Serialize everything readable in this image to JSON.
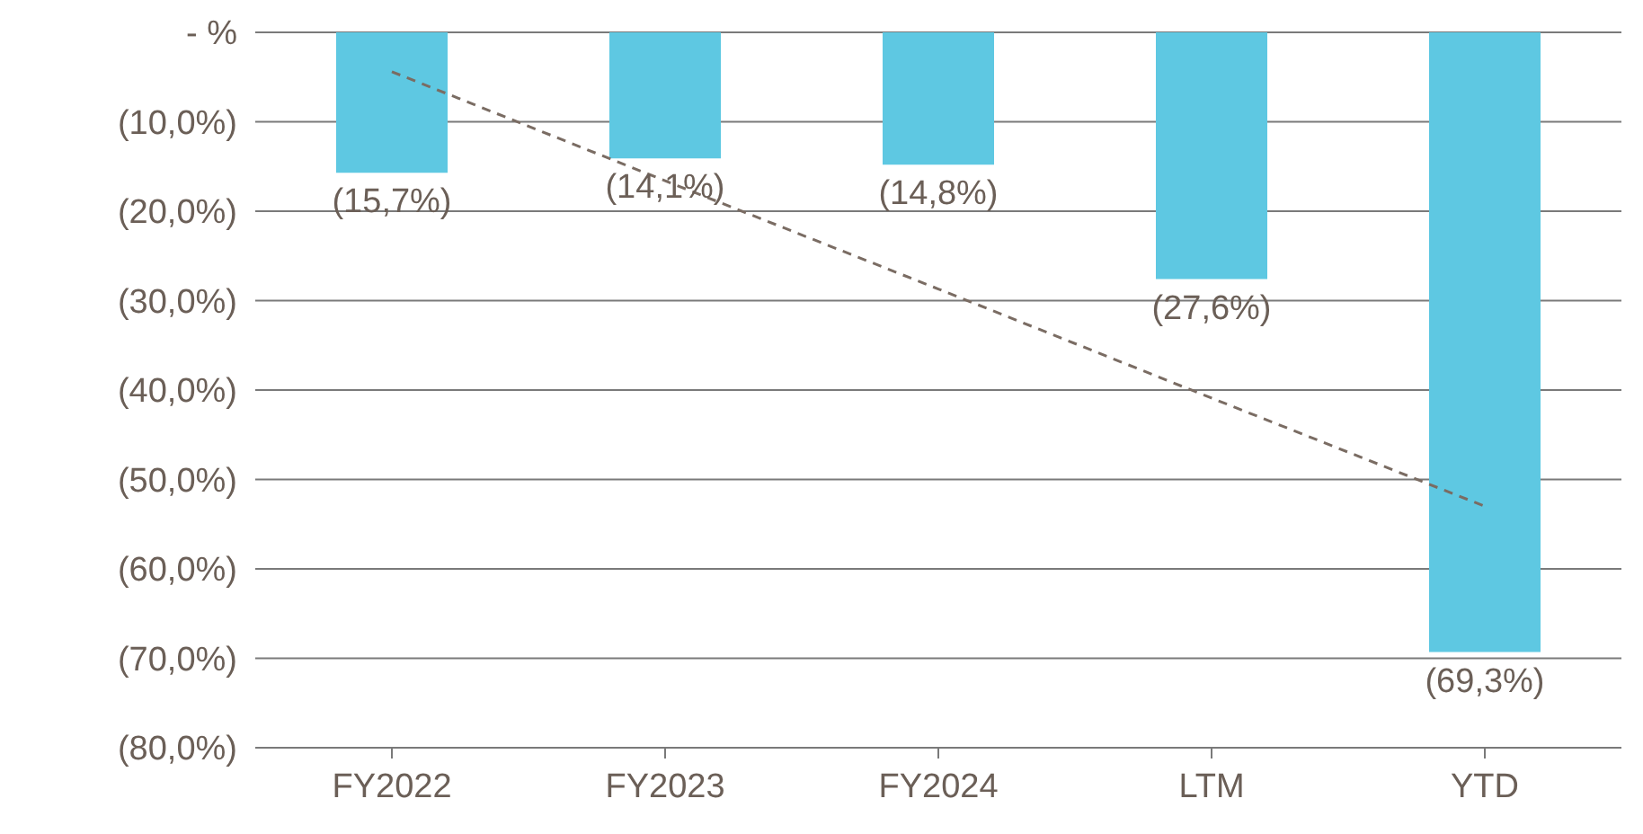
{
  "chart_data": {
    "type": "bar",
    "categories": [
      "FY2022",
      "FY2023",
      "FY2024",
      "LTM",
      "YTD"
    ],
    "series": [
      {
        "color": "#5ec8e2",
        "values": [
          -15.7,
          -14.1,
          -14.8,
          -27.6,
          -69.3
        ],
        "value_labels": [
          "(15,7%)",
          "(14,1%)",
          "(14,8%)",
          "(27,6%)",
          "(69,3%)"
        ]
      },
      {
        "type": "line",
        "color": "#7a6c63",
        "line_style": "dashed",
        "marker": "none",
        "x": [
          "FY2022",
          "FY2023",
          "FY2024",
          "LTM",
          "YTD"
        ],
        "values": [
          -4.4,
          -16.6,
          -28.7,
          -40.9,
          -53.0
        ]
      }
    ],
    "ylim": [
      -80,
      0
    ],
    "yticks": [
      {
        "value": 0,
        "label": "- %"
      },
      {
        "value": -10,
        "label": "(10,0%)"
      },
      {
        "value": -20,
        "label": "(20,0%)"
      },
      {
        "value": -30,
        "label": "(30,0%)"
      },
      {
        "value": -40,
        "label": "(40,0%)"
      },
      {
        "value": -50,
        "label": "(50,0%)"
      },
      {
        "value": -60,
        "label": "(60,0%)"
      },
      {
        "value": -70,
        "label": "(70,0%)"
      },
      {
        "value": -80,
        "label": "(80,0%)"
      }
    ],
    "grid": "y",
    "legend": false
  }
}
